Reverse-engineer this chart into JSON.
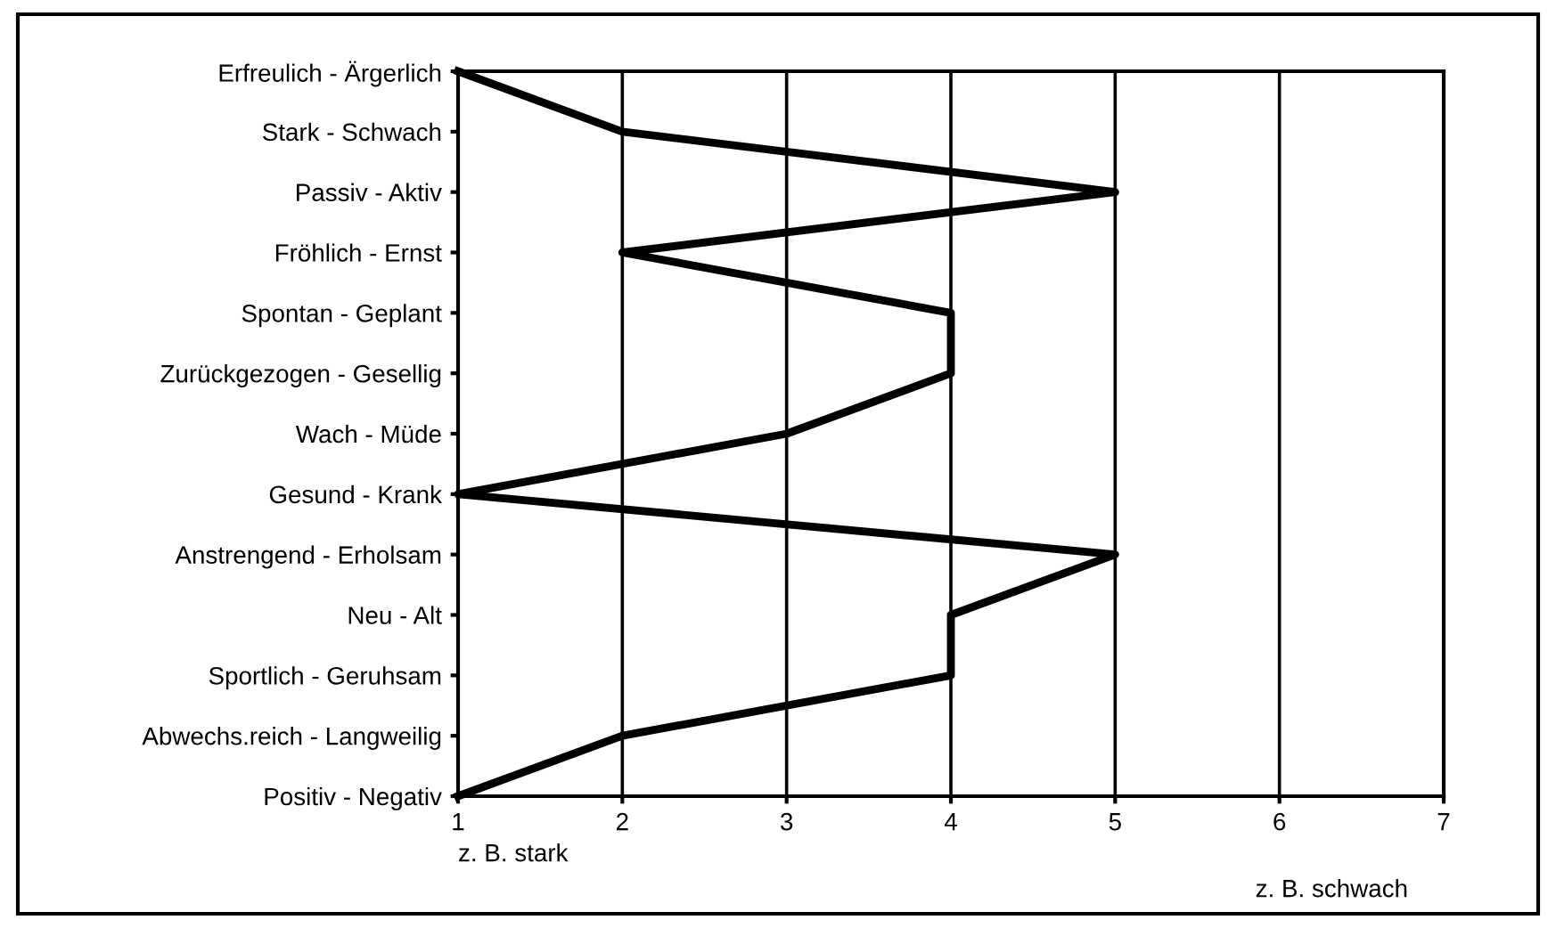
{
  "chart_data": {
    "type": "line",
    "orientation": "horizontal",
    "categories": [
      "Erfreulich - Ärgerlich",
      "Stark - Schwach",
      "Passiv - Aktiv",
      "Fröhlich - Ernst",
      "Spontan - Geplant",
      "Zurückgezogen - Gesellig",
      "Wach - Müde",
      "Gesund - Krank",
      "Anstrengend - Erholsam",
      "Neu - Alt",
      "Sportlich - Geruhsam",
      "Abwechs.reich - Langweilig",
      "Positiv - Negativ"
    ],
    "series": [
      {
        "color": "#000000",
        "values": [
          1,
          2,
          5,
          2,
          4,
          4,
          3,
          1,
          5,
          4,
          4,
          2,
          1
        ]
      }
    ],
    "xlim": [
      1,
      7
    ],
    "xticks": [
      1,
      2,
      3,
      4,
      5,
      6,
      7
    ],
    "grid": "x",
    "marker": "none",
    "line_style": "solid",
    "annotations": [
      "z. B. stark",
      "z. B. schwach"
    ]
  }
}
